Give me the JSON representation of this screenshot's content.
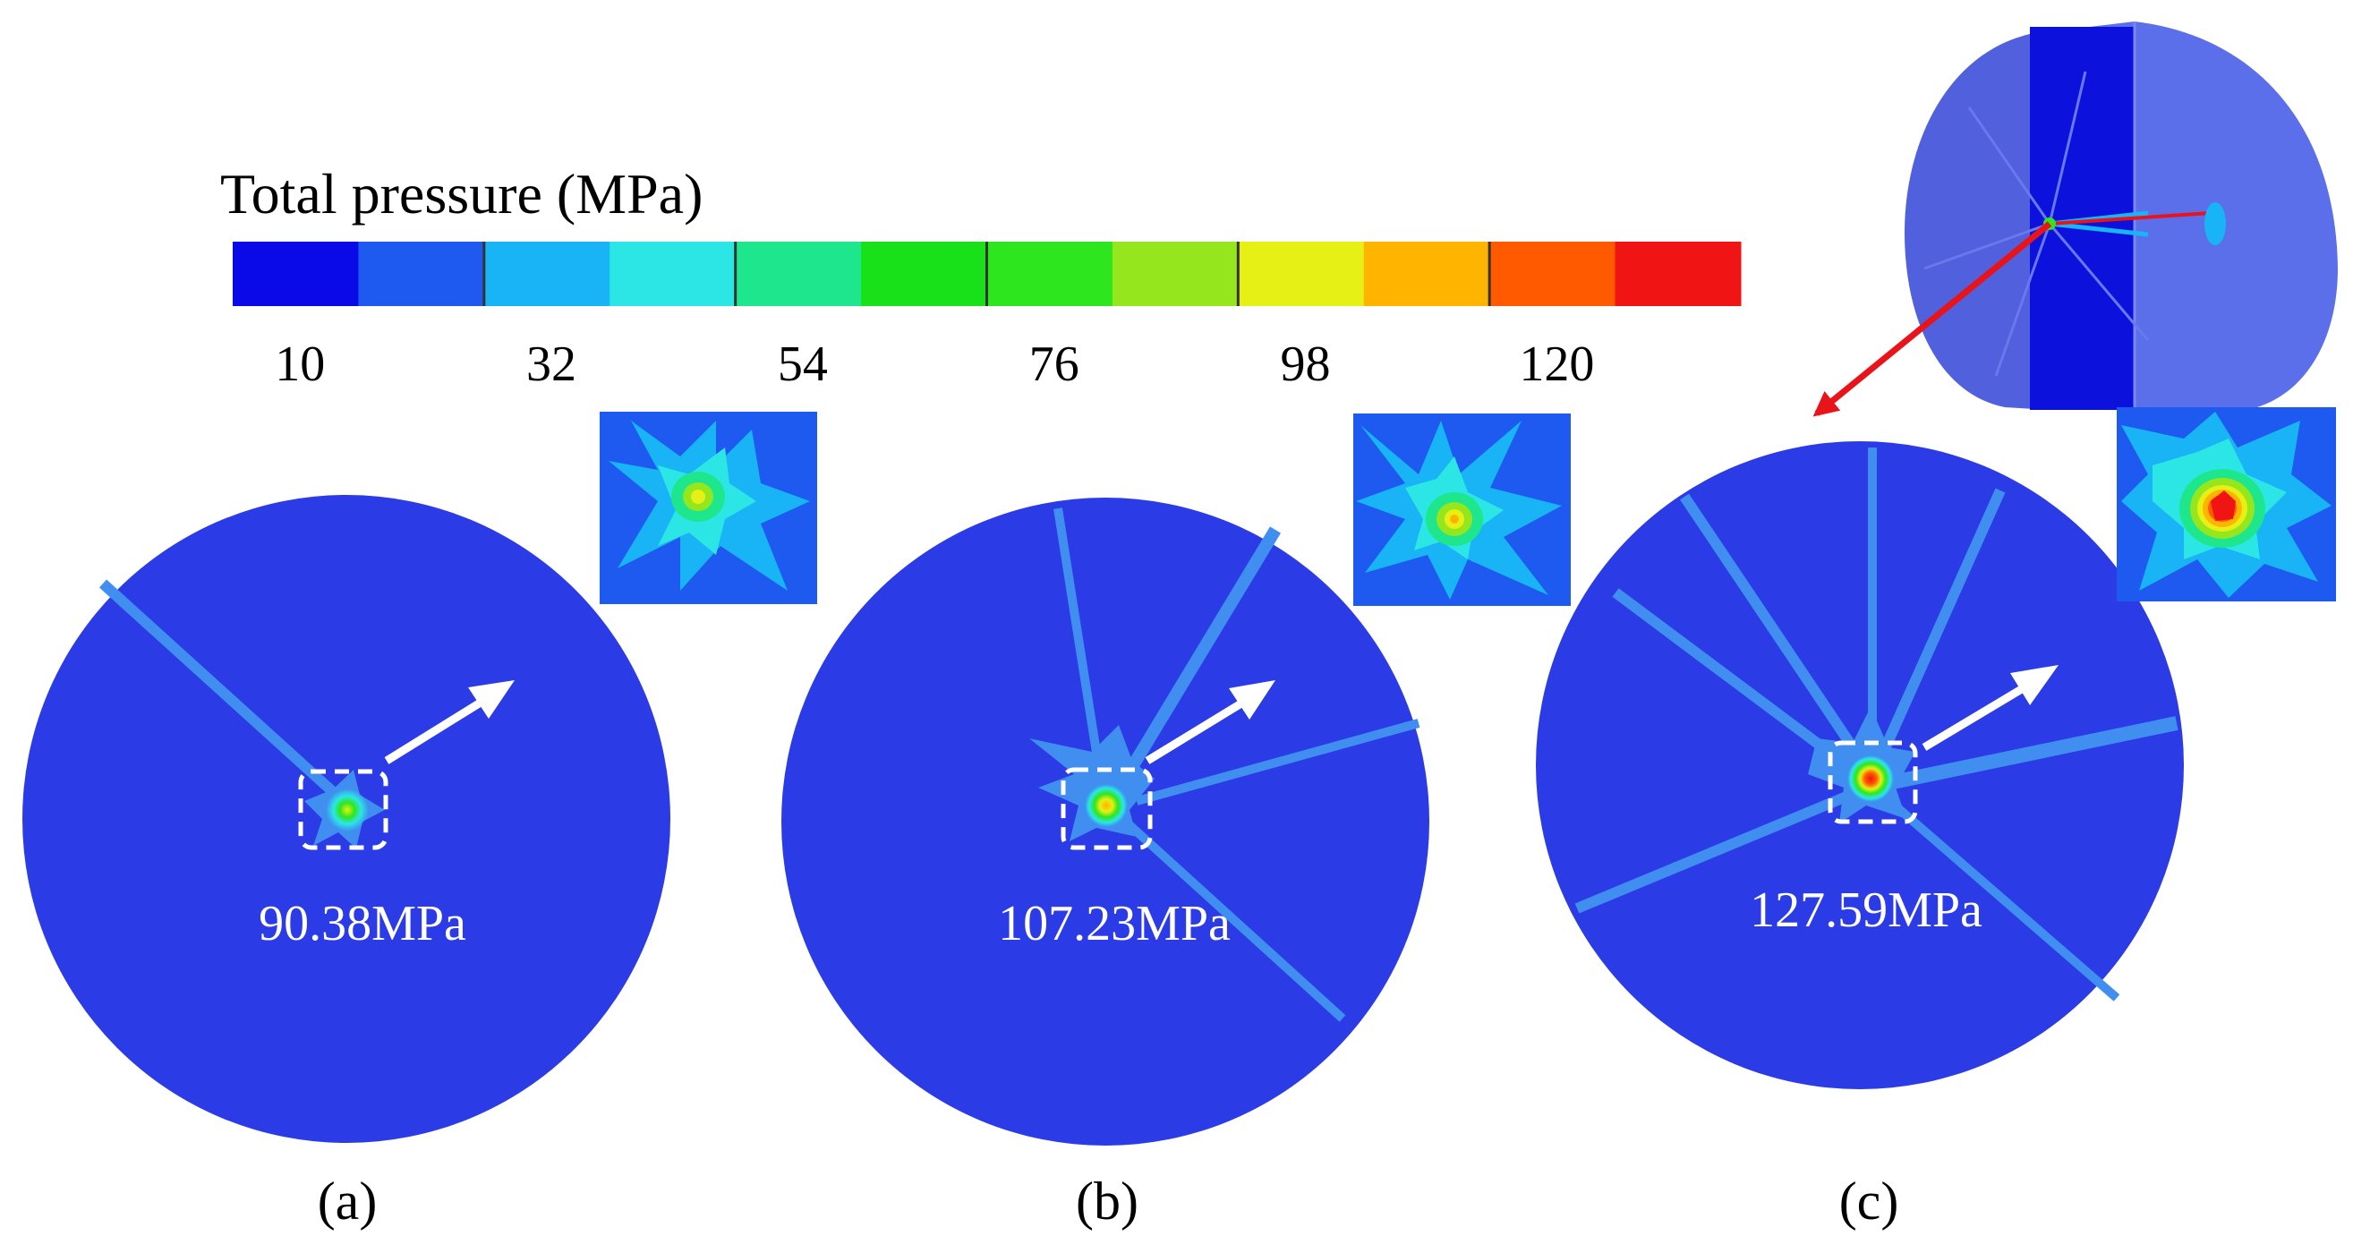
{
  "legend": {
    "title": "Total pressure (MPa)",
    "colors": [
      "#0a0ae8",
      "#1e5af0",
      "#19b4f5",
      "#2ce6e6",
      "#1ee68c",
      "#19e119",
      "#2ee61e",
      "#96e61e",
      "#e6f014",
      "#ffb400",
      "#ff5a00",
      "#f01414"
    ],
    "ticks": [
      "10",
      "32",
      "54",
      "76",
      "98",
      "120"
    ]
  },
  "panels": [
    {
      "label": "(a)",
      "peak_value": "90.38MPa",
      "peak": 90.38
    },
    {
      "label": "(b)",
      "peak_value": "107.23MPa",
      "peak": 107.23
    },
    {
      "label": "(c)",
      "peak_value": "127.59MPa",
      "peak": 127.59
    }
  ],
  "colors": {
    "field_blue": "#2b3be6",
    "crack_blue": "#3f8ef0",
    "arrow_white": "#ffffff",
    "pointer_red": "#e8141a"
  }
}
